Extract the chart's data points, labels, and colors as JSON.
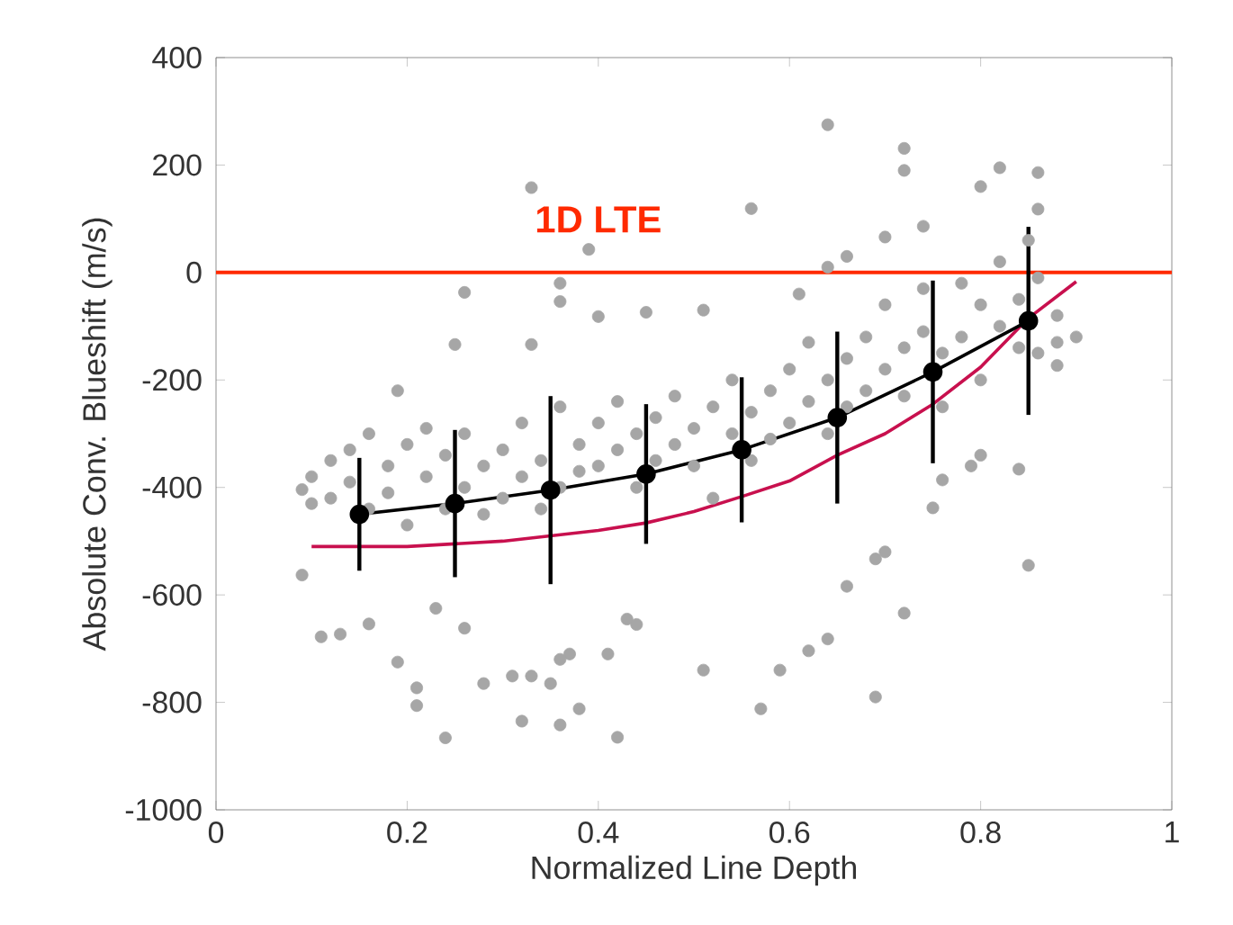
{
  "chart_data": {
    "type": "scatter",
    "xlabel": "Normalized Line Depth",
    "ylabel": "Absolute Conv. Blueshift (m/s)",
    "xlim": [
      0,
      1
    ],
    "ylim": [
      -1000,
      400
    ],
    "xticks": [
      0,
      0.2,
      0.4,
      0.6,
      0.8,
      1
    ],
    "yticks": [
      -1000,
      -800,
      -600,
      -400,
      -200,
      0,
      200,
      400
    ],
    "grid": false,
    "ref_lines": [
      {
        "axis": "y",
        "value": 0,
        "label": "1D LTE",
        "color": "#ff2a00",
        "line_style": "solid"
      }
    ],
    "series": [
      {
        "color": "#a6a6a6",
        "marker": "circle",
        "x": [
          0.33,
          0.26,
          0.25,
          0.33,
          0.19,
          0.09,
          0.09,
          0.11,
          0.13,
          0.16,
          0.19,
          0.21,
          0.21,
          0.24,
          0.32,
          0.28,
          0.31,
          0.33,
          0.26,
          0.23,
          0.64,
          0.56,
          0.39,
          0.36,
          0.36,
          0.45,
          0.51,
          0.61,
          0.64,
          0.66,
          0.4,
          0.36,
          0.42,
          0.38,
          0.35,
          0.51,
          0.57,
          0.59,
          0.62,
          0.64,
          0.66,
          0.43,
          0.44,
          0.41,
          0.37,
          0.36,
          0.72,
          0.72,
          0.82,
          0.86,
          0.8,
          0.86,
          0.74,
          0.7,
          0.85,
          0.9,
          0.88,
          0.84,
          0.85,
          0.75,
          0.69,
          0.7,
          0.72,
          0.69,
          0.8,
          0.76,
          0.79,
          0.1,
          0.1,
          0.12,
          0.12,
          0.14,
          0.14,
          0.16,
          0.16,
          0.18,
          0.18,
          0.2,
          0.2,
          0.22,
          0.22,
          0.24,
          0.24,
          0.26,
          0.26,
          0.28,
          0.28,
          0.3,
          0.3,
          0.32,
          0.32,
          0.34,
          0.34,
          0.36,
          0.36,
          0.38,
          0.38,
          0.4,
          0.4,
          0.42,
          0.42,
          0.44,
          0.44,
          0.46,
          0.46,
          0.48,
          0.48,
          0.5,
          0.5,
          0.52,
          0.52,
          0.54,
          0.54,
          0.56,
          0.56,
          0.58,
          0.58,
          0.6,
          0.6,
          0.62,
          0.62,
          0.64,
          0.64,
          0.66,
          0.66,
          0.68,
          0.68,
          0.7,
          0.7,
          0.72,
          0.72,
          0.74,
          0.74,
          0.76,
          0.76,
          0.78,
          0.78,
          0.8,
          0.8,
          0.82,
          0.82,
          0.84,
          0.84,
          0.86,
          0.86,
          0.88,
          0.88
        ],
        "values": [
          158,
          -37,
          -134,
          -134,
          -220,
          -404,
          -563,
          -678,
          -673,
          -654,
          -725,
          -773,
          -806,
          -866,
          -835,
          -765,
          -751,
          -751,
          -662,
          -625,
          275,
          119,
          43,
          -54,
          -20,
          -74,
          -70,
          -40,
          10,
          30,
          -82,
          -842,
          -865,
          -812,
          -765,
          -740,
          -812,
          -740,
          -704,
          -682,
          -584,
          -645,
          -655,
          -710,
          -710,
          -720,
          231,
          190,
          195,
          186,
          160,
          118,
          86,
          66,
          60,
          -120,
          -173,
          -366,
          -545,
          -438,
          -533,
          -520,
          -634,
          -790,
          -340,
          -386,
          -360,
          -380,
          -430,
          -350,
          -420,
          -390,
          -330,
          -300,
          -440,
          -360,
          -410,
          -320,
          -470,
          -290,
          -380,
          -340,
          -440,
          -300,
          -400,
          -360,
          -450,
          -330,
          -420,
          -280,
          -380,
          -350,
          -440,
          -250,
          -400,
          -320,
          -370,
          -280,
          -360,
          -240,
          -330,
          -300,
          -400,
          -350,
          -270,
          -230,
          -320,
          -290,
          -360,
          -250,
          -420,
          -200,
          -300,
          -260,
          -350,
          -220,
          -310,
          -180,
          -280,
          -130,
          -240,
          -200,
          -300,
          -160,
          -250,
          -120,
          -220,
          -60,
          -180,
          -140,
          -230,
          -30,
          -110,
          -150,
          -250,
          -20,
          -120,
          -60,
          -200,
          20,
          -100,
          -50,
          -140,
          -10,
          -150,
          -80,
          -130
        ]
      },
      {
        "type": "line",
        "color": "#c8104e",
        "x": [
          0.1,
          0.2,
          0.3,
          0.4,
          0.45,
          0.5,
          0.55,
          0.6,
          0.65,
          0.7,
          0.75,
          0.8,
          0.85,
          0.9
        ],
        "values": [
          -510,
          -510,
          -500,
          -480,
          -466,
          -445,
          -417,
          -388,
          -340,
          -300,
          -245,
          -176,
          -85,
          -17
        ]
      },
      {
        "type": "line",
        "color": "#000000",
        "marker": "circle",
        "x": [
          0.15,
          0.25,
          0.35,
          0.45,
          0.55,
          0.65,
          0.75,
          0.85
        ],
        "values": [
          -450,
          -430,
          -405,
          -375,
          -330,
          -270,
          -185,
          -90
        ],
        "errors": [
          105,
          137,
          175,
          130,
          135,
          160,
          170,
          175
        ]
      }
    ]
  }
}
